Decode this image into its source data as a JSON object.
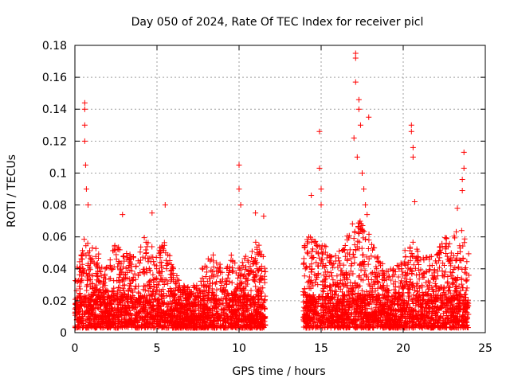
{
  "chart_data": {
    "type": "scatter",
    "title": "Day 050 of 2024, Rate Of TEC Index for receiver picl",
    "xlabel": "GPS time / hours",
    "ylabel": "ROTI / TECUs",
    "xlim": [
      0,
      25
    ],
    "ylim": [
      0,
      0.18
    ],
    "x_ticks": [
      0,
      5,
      10,
      15,
      20,
      25
    ],
    "x_tick_labels": [
      "0",
      "5",
      "10",
      "15",
      "20",
      "25"
    ],
    "y_ticks": [
      0,
      0.02,
      0.04,
      0.06,
      0.08,
      0.1,
      0.12,
      0.14,
      0.16,
      0.18
    ],
    "y_tick_labels": [
      "0",
      "0.02",
      "0.04",
      "0.06",
      "0.08",
      "0.1",
      "0.12",
      "0.14",
      "0.16",
      "0.18"
    ],
    "grid": true,
    "marker": "+",
    "series": [
      {
        "name": "ROTI",
        "color": "#ff0000",
        "bulk": {
          "time_ranges_hours": [
            [
              0.0,
              11.6
            ],
            [
              13.9,
              24.0
            ]
          ],
          "typical_max_by_hour": [
            [
              0.0,
              0.04
            ],
            [
              0.5,
              0.06
            ],
            [
              1.0,
              0.06
            ],
            [
              1.5,
              0.05
            ],
            [
              2.0,
              0.04
            ],
            [
              2.5,
              0.06
            ],
            [
              3.0,
              0.05
            ],
            [
              3.5,
              0.05
            ],
            [
              4.0,
              0.06
            ],
            [
              4.5,
              0.06
            ],
            [
              5.0,
              0.05
            ],
            [
              5.5,
              0.06
            ],
            [
              6.0,
              0.04
            ],
            [
              6.5,
              0.03
            ],
            [
              7.0,
              0.03
            ],
            [
              7.5,
              0.03
            ],
            [
              8.0,
              0.05
            ],
            [
              8.5,
              0.05
            ],
            [
              9.0,
              0.04
            ],
            [
              9.5,
              0.05
            ],
            [
              10.0,
              0.04
            ],
            [
              10.5,
              0.05
            ],
            [
              11.0,
              0.06
            ],
            [
              11.5,
              0.05
            ],
            [
              14.0,
              0.06
            ],
            [
              14.5,
              0.06
            ],
            [
              15.0,
              0.06
            ],
            [
              15.5,
              0.05
            ],
            [
              16.0,
              0.05
            ],
            [
              16.5,
              0.06
            ],
            [
              17.0,
              0.07
            ],
            [
              17.5,
              0.07
            ],
            [
              18.0,
              0.06
            ],
            [
              18.5,
              0.05
            ],
            [
              19.0,
              0.04
            ],
            [
              19.5,
              0.04
            ],
            [
              20.0,
              0.05
            ],
            [
              20.5,
              0.06
            ],
            [
              21.0,
              0.05
            ],
            [
              21.5,
              0.05
            ],
            [
              22.0,
              0.05
            ],
            [
              22.5,
              0.06
            ],
            [
              23.0,
              0.06
            ],
            [
              23.5,
              0.07
            ],
            [
              24.0,
              0.05
            ]
          ],
          "typical_min": 0.003
        },
        "notable_points": [
          {
            "x": 0.6,
            "y": 0.144
          },
          {
            "x": 0.6,
            "y": 0.14
          },
          {
            "x": 0.6,
            "y": 0.13
          },
          {
            "x": 0.6,
            "y": 0.12
          },
          {
            "x": 0.65,
            "y": 0.105
          },
          {
            "x": 0.7,
            "y": 0.09
          },
          {
            "x": 0.8,
            "y": 0.08
          },
          {
            "x": 2.9,
            "y": 0.074
          },
          {
            "x": 4.7,
            "y": 0.075
          },
          {
            "x": 5.5,
            "y": 0.08
          },
          {
            "x": 10.0,
            "y": 0.105
          },
          {
            "x": 10.0,
            "y": 0.09
          },
          {
            "x": 10.1,
            "y": 0.08
          },
          {
            "x": 11.0,
            "y": 0.075
          },
          {
            "x": 11.5,
            "y": 0.073
          },
          {
            "x": 14.4,
            "y": 0.086
          },
          {
            "x": 14.9,
            "y": 0.126
          },
          {
            "x": 14.9,
            "y": 0.103
          },
          {
            "x": 15.0,
            "y": 0.09
          },
          {
            "x": 15.0,
            "y": 0.08
          },
          {
            "x": 17.1,
            "y": 0.175
          },
          {
            "x": 17.1,
            "y": 0.172
          },
          {
            "x": 17.1,
            "y": 0.157
          },
          {
            "x": 17.0,
            "y": 0.122
          },
          {
            "x": 17.2,
            "y": 0.11
          },
          {
            "x": 17.3,
            "y": 0.146
          },
          {
            "x": 17.3,
            "y": 0.14
          },
          {
            "x": 17.4,
            "y": 0.13
          },
          {
            "x": 17.5,
            "y": 0.1
          },
          {
            "x": 17.6,
            "y": 0.09
          },
          {
            "x": 17.7,
            "y": 0.08
          },
          {
            "x": 17.8,
            "y": 0.074
          },
          {
            "x": 17.9,
            "y": 0.135
          },
          {
            "x": 20.5,
            "y": 0.13
          },
          {
            "x": 20.5,
            "y": 0.126
          },
          {
            "x": 20.6,
            "y": 0.116
          },
          {
            "x": 20.6,
            "y": 0.11
          },
          {
            "x": 20.7,
            "y": 0.082
          },
          {
            "x": 23.7,
            "y": 0.113
          },
          {
            "x": 23.7,
            "y": 0.103
          },
          {
            "x": 23.6,
            "y": 0.096
          },
          {
            "x": 23.6,
            "y": 0.089
          },
          {
            "x": 23.3,
            "y": 0.078
          }
        ]
      }
    ]
  }
}
